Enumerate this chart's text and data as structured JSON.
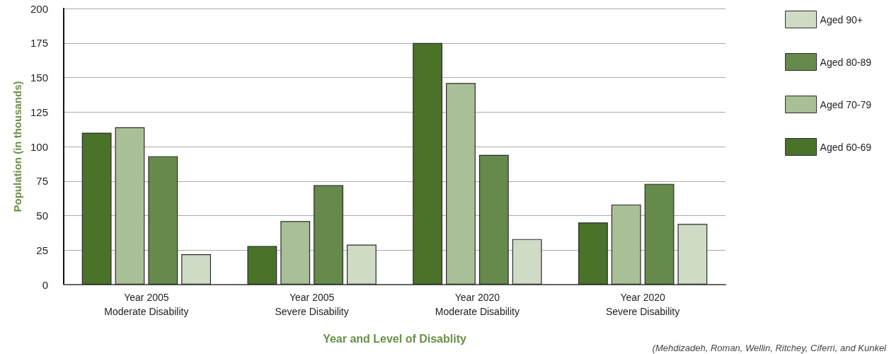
{
  "chart_data": {
    "type": "bar",
    "xlabel": "Year and Level of Disablity",
    "ylabel": "Population (in thousands)",
    "categories": [
      "Year 2005\nModerate Disability",
      "Year 2005\nSevere Disability",
      "Year 2020\nModerate Disability",
      "Year 2020\nSevere Disability"
    ],
    "series": [
      {
        "name": "Aged 60-69",
        "color": "#4a7229",
        "values": [
          110,
          28,
          175,
          45
        ]
      },
      {
        "name": "Aged 70-79",
        "color": "#a9bf96",
        "values": [
          114,
          46,
          146,
          58
        ]
      },
      {
        "name": "Aged 80-89",
        "color": "#668a4b",
        "values": [
          93,
          72,
          94,
          73
        ]
      },
      {
        "name": "Aged 90+",
        "color": "#cfdbc4",
        "values": [
          22,
          29,
          33,
          44
        ]
      }
    ],
    "ylim": [
      0,
      200
    ],
    "yticks": [
      0,
      25,
      50,
      75,
      100,
      125,
      150,
      175,
      200
    ],
    "grid": "y",
    "legend": "right",
    "annotations": [
      "(Mehdizadeh, Roman, Wellin, Ritchey, Ciferri, and Kunkel"
    ]
  }
}
